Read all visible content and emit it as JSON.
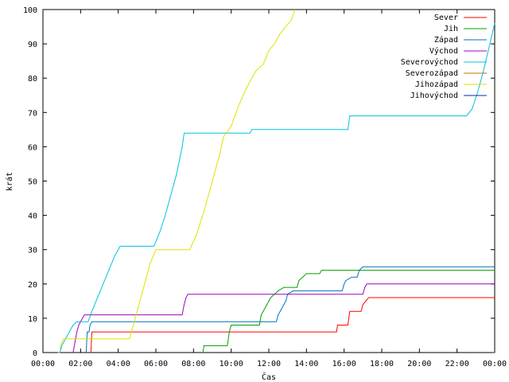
{
  "chart_data": {
    "type": "line",
    "title": "",
    "xlabel": "Čas",
    "ylabel": "krát",
    "xlim": [
      0,
      24
    ],
    "ylim": [
      0,
      100
    ],
    "grid": false,
    "legend_position": "top-right",
    "x_ticks": [
      {
        "value": 0,
        "label": "00:00"
      },
      {
        "value": 2,
        "label": "02:00"
      },
      {
        "value": 4,
        "label": "04:00"
      },
      {
        "value": 6,
        "label": "06:00"
      },
      {
        "value": 8,
        "label": "08:00"
      },
      {
        "value": 10,
        "label": "10:00"
      },
      {
        "value": 12,
        "label": "12:00"
      },
      {
        "value": 14,
        "label": "14:00"
      },
      {
        "value": 16,
        "label": "16:00"
      },
      {
        "value": 18,
        "label": "18:00"
      },
      {
        "value": 20,
        "label": "20:00"
      },
      {
        "value": 22,
        "label": "22:00"
      },
      {
        "value": 24,
        "label": "00:00"
      }
    ],
    "y_ticks": [
      {
        "value": 0,
        "label": "0"
      },
      {
        "value": 10,
        "label": "10"
      },
      {
        "value": 20,
        "label": "20"
      },
      {
        "value": 30,
        "label": "30"
      },
      {
        "value": 40,
        "label": "40"
      },
      {
        "value": 50,
        "label": "50"
      },
      {
        "value": 60,
        "label": "60"
      },
      {
        "value": 70,
        "label": "70"
      },
      {
        "value": 80,
        "label": "80"
      },
      {
        "value": 90,
        "label": "90"
      },
      {
        "value": 100,
        "label": "100"
      }
    ],
    "series": [
      {
        "name": "Sever",
        "color": "#ff0000",
        "points": [
          [
            2.55,
            0
          ],
          [
            2.6,
            6
          ],
          [
            15.6,
            6
          ],
          [
            15.65,
            8
          ],
          [
            16.2,
            8
          ],
          [
            16.3,
            12
          ],
          [
            16.9,
            12
          ],
          [
            17.0,
            14
          ],
          [
            17.3,
            16
          ],
          [
            24,
            16
          ]
        ]
      },
      {
        "name": "Jih",
        "color": "#00a000",
        "points": [
          [
            8.5,
            0
          ],
          [
            8.55,
            2
          ],
          [
            9.8,
            2
          ],
          [
            9.9,
            6
          ],
          [
            10.0,
            8
          ],
          [
            11.5,
            8
          ],
          [
            11.6,
            11
          ],
          [
            11.8,
            13
          ],
          [
            12.1,
            16
          ],
          [
            12.3,
            17
          ],
          [
            12.5,
            18
          ],
          [
            12.8,
            19
          ],
          [
            13.5,
            19
          ],
          [
            13.6,
            21
          ],
          [
            13.8,
            22
          ],
          [
            14.0,
            23
          ],
          [
            14.7,
            23
          ],
          [
            14.8,
            24
          ],
          [
            24,
            24
          ]
        ]
      },
      {
        "name": "Západ",
        "color": "#0070c0",
        "points": [
          [
            2.3,
            0
          ],
          [
            2.35,
            6
          ],
          [
            2.45,
            6
          ],
          [
            2.5,
            8
          ],
          [
            2.6,
            9
          ],
          [
            12.4,
            9
          ],
          [
            12.5,
            11
          ],
          [
            12.7,
            13
          ],
          [
            12.9,
            15
          ],
          [
            13.0,
            17
          ],
          [
            13.3,
            18
          ],
          [
            15.9,
            18
          ],
          [
            16.0,
            20
          ],
          [
            16.1,
            21
          ],
          [
            16.4,
            22
          ],
          [
            16.7,
            22
          ],
          [
            16.8,
            24
          ],
          [
            17.0,
            25
          ],
          [
            24,
            25
          ]
        ]
      },
      {
        "name": "Východ",
        "color": "#a000c0",
        "points": [
          [
            1.6,
            0
          ],
          [
            1.8,
            6
          ],
          [
            1.9,
            8
          ],
          [
            2.1,
            10
          ],
          [
            2.2,
            11
          ],
          [
            7.4,
            11
          ],
          [
            7.5,
            14
          ],
          [
            7.6,
            16
          ],
          [
            7.7,
            17
          ],
          [
            17.0,
            17
          ],
          [
            17.1,
            19
          ],
          [
            17.2,
            20
          ],
          [
            24,
            20
          ]
        ]
      },
      {
        "name": "Severovýchod",
        "color": "#00c0e0",
        "points": [
          [
            0.9,
            0
          ],
          [
            1.0,
            2
          ],
          [
            1.2,
            4
          ],
          [
            1.4,
            6
          ],
          [
            1.6,
            8
          ],
          [
            1.8,
            9
          ],
          [
            2.4,
            9
          ],
          [
            2.6,
            12
          ],
          [
            2.9,
            16
          ],
          [
            3.2,
            20
          ],
          [
            3.5,
            24
          ],
          [
            3.8,
            28
          ],
          [
            4.1,
            31
          ],
          [
            5.9,
            31
          ],
          [
            6.2,
            35
          ],
          [
            6.5,
            40
          ],
          [
            6.8,
            46
          ],
          [
            7.1,
            52
          ],
          [
            7.4,
            60
          ],
          [
            7.5,
            64
          ],
          [
            11.0,
            64
          ],
          [
            11.1,
            65
          ],
          [
            16.2,
            65
          ],
          [
            16.3,
            69
          ],
          [
            22.5,
            69
          ],
          [
            22.8,
            71
          ],
          [
            23.1,
            76
          ],
          [
            23.4,
            82
          ],
          [
            23.7,
            89
          ],
          [
            24,
            96
          ]
        ]
      },
      {
        "name": "Severozápad",
        "color": "#c07000",
        "points": [
          [
            0.8,
            0
          ],
          [
            0.9,
            0
          ]
        ]
      },
      {
        "name": "Jihozápad",
        "color": "#e0e000",
        "points": [
          [
            0.9,
            1
          ],
          [
            1.0,
            3
          ],
          [
            1.1,
            4
          ],
          [
            4.6,
            4
          ],
          [
            4.8,
            8
          ],
          [
            5.1,
            14
          ],
          [
            5.4,
            20
          ],
          [
            5.7,
            26
          ],
          [
            6.0,
            30
          ],
          [
            7.8,
            30
          ],
          [
            8.2,
            35
          ],
          [
            8.6,
            42
          ],
          [
            9.0,
            50
          ],
          [
            9.4,
            58
          ],
          [
            9.6,
            63
          ],
          [
            10.0,
            66
          ],
          [
            10.4,
            72
          ],
          [
            10.8,
            77
          ],
          [
            11.1,
            80
          ],
          [
            11.3,
            82
          ],
          [
            11.7,
            84
          ],
          [
            12.0,
            88
          ],
          [
            12.3,
            90
          ],
          [
            12.6,
            93
          ],
          [
            12.9,
            95
          ],
          [
            13.2,
            97
          ],
          [
            13.4,
            100
          ]
        ]
      },
      {
        "name": "Jihovýchod",
        "color": "#0030a0",
        "points": [
          [
            23.9,
            0
          ],
          [
            24,
            0
          ]
        ]
      }
    ]
  }
}
